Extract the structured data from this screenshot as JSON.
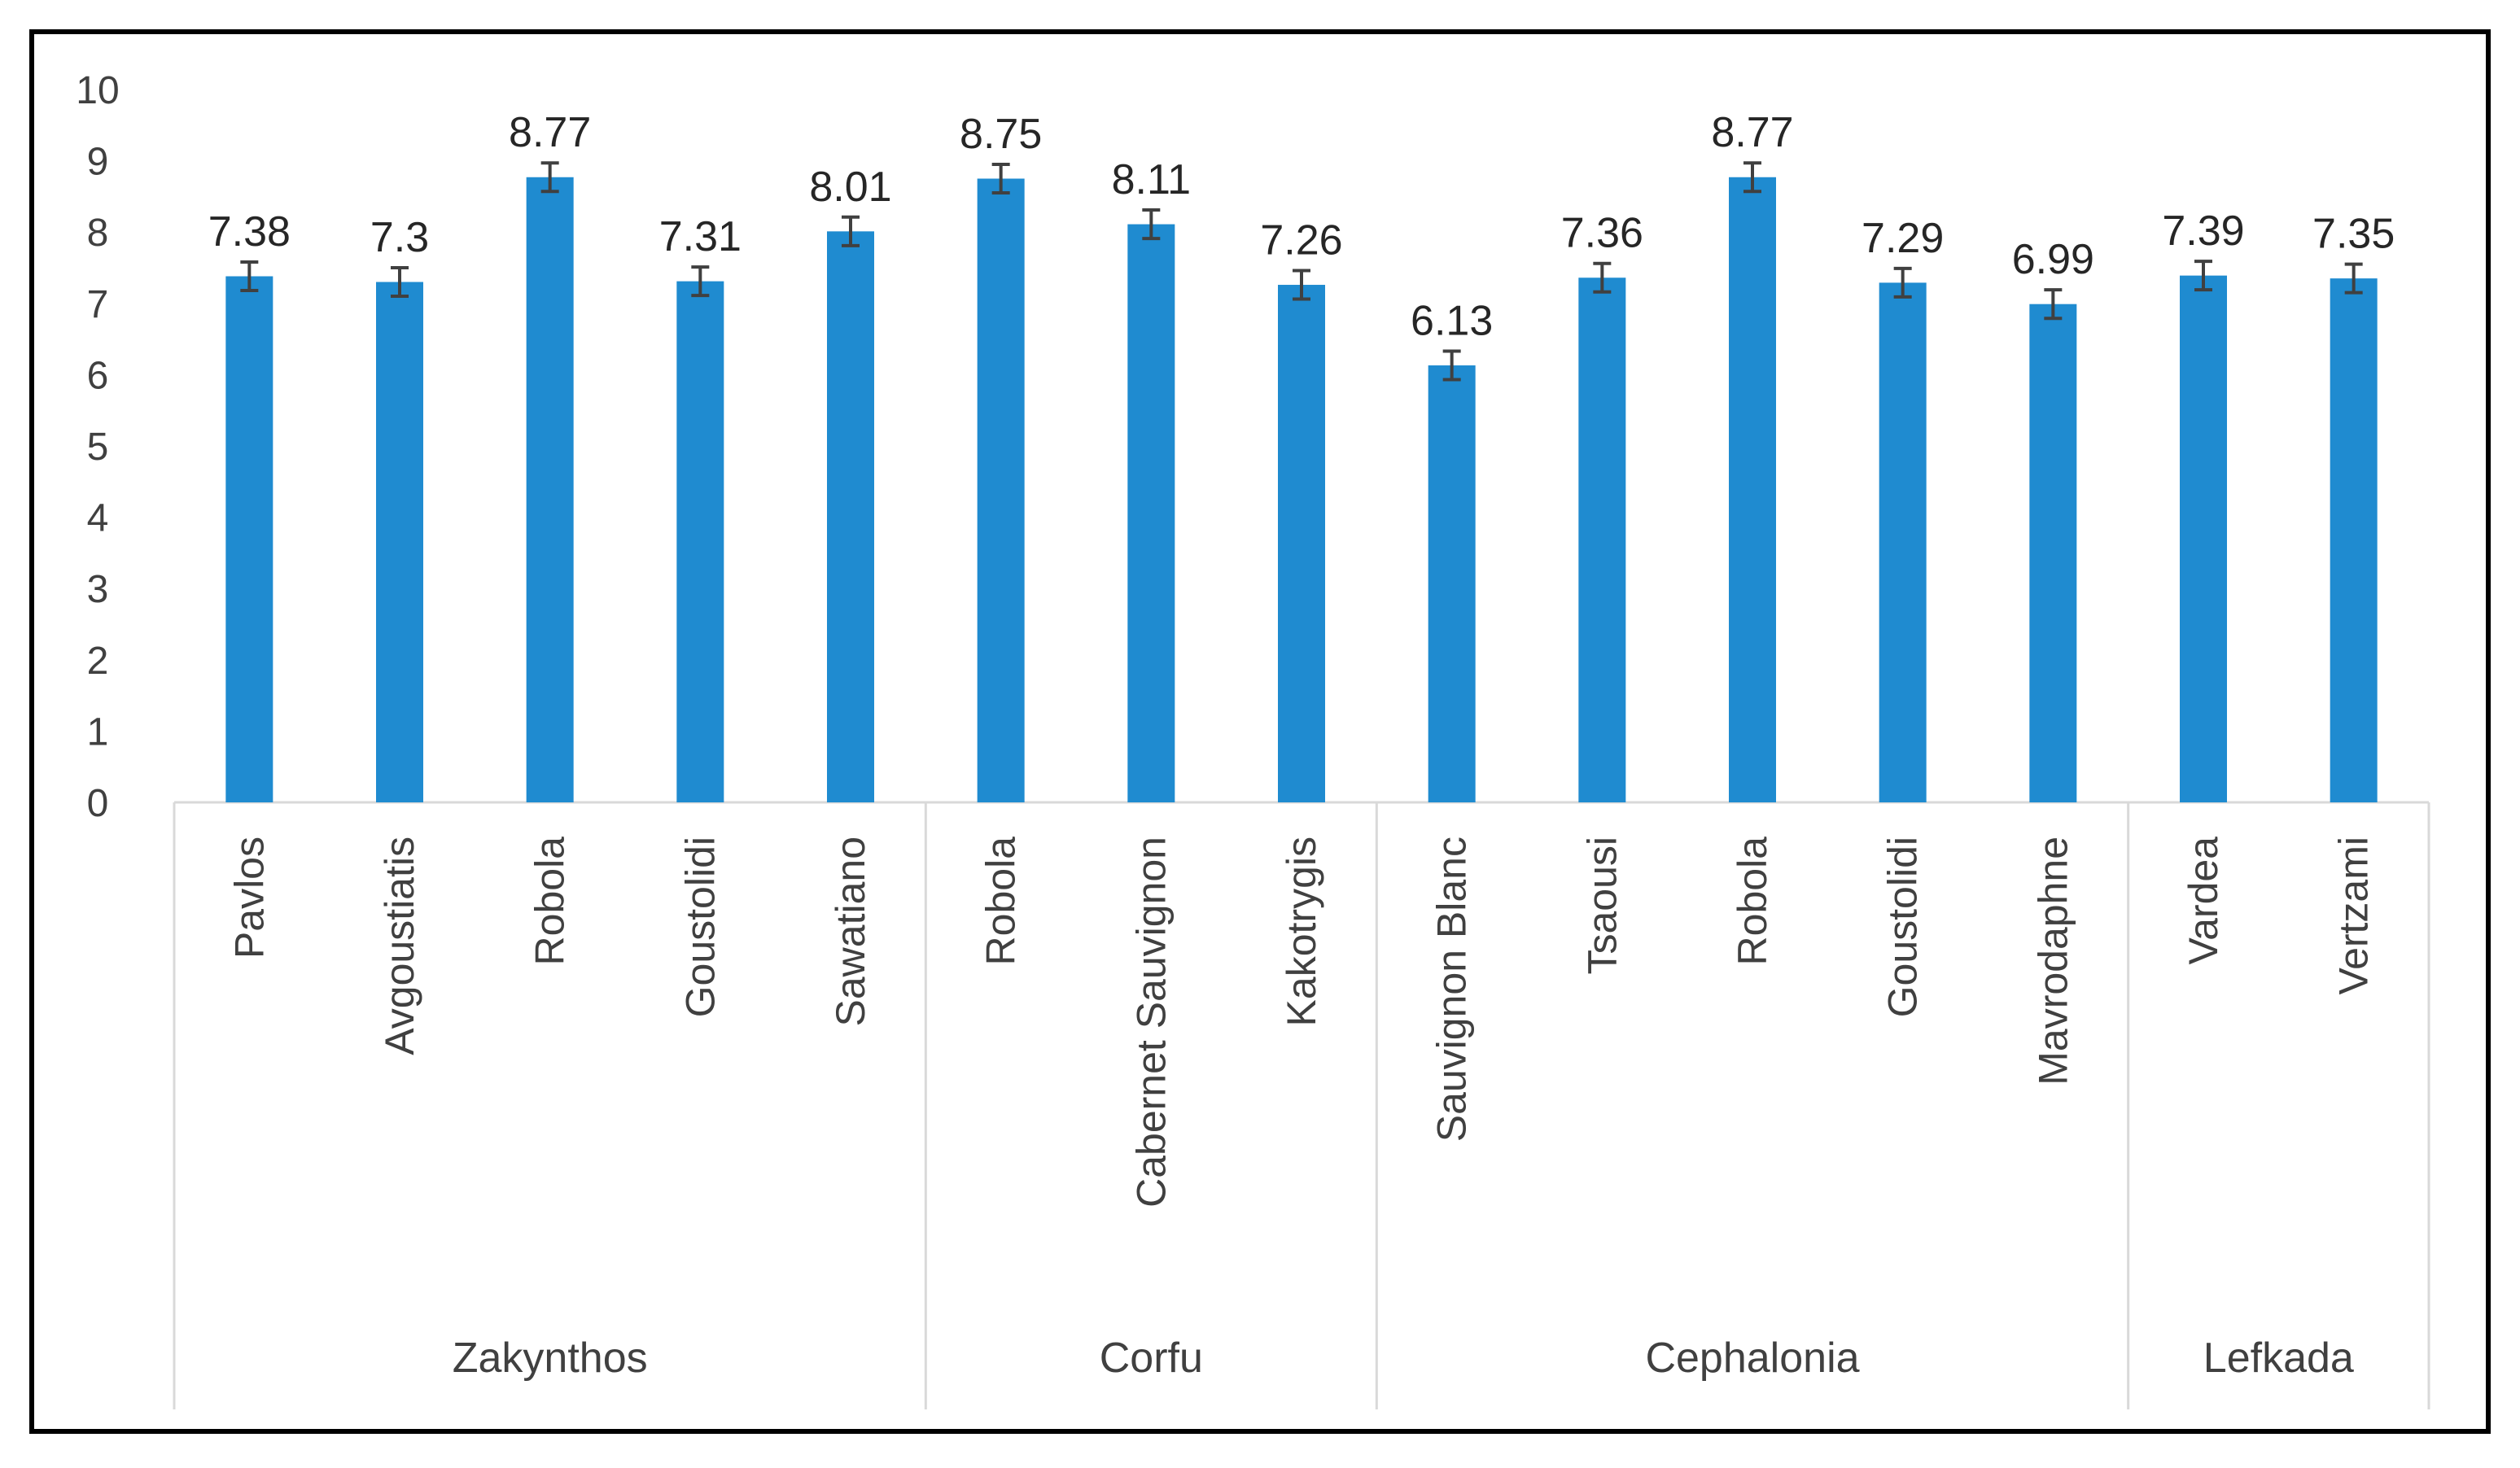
{
  "chart_data": {
    "type": "bar",
    "title": "",
    "xlabel": "",
    "ylabel": "",
    "ylim": [
      0,
      10
    ],
    "yticks": [
      0,
      1,
      2,
      3,
      4,
      5,
      6,
      7,
      8,
      9,
      10
    ],
    "bar_color": "#1f8bd0",
    "groups": [
      {
        "name": "Zakynthos",
        "categories": [
          "Pavlos",
          "Avgoustiatis",
          "Robola",
          "Goustolidi",
          "Sawatiano"
        ]
      },
      {
        "name": "Corfu",
        "categories": [
          "Robola",
          "Cabernet Sauvignon",
          "Kakotrygis"
        ]
      },
      {
        "name": "Cephalonia",
        "categories": [
          "Sauvignon Blanc",
          "Tsaousi",
          "Robola",
          "Goustolidi",
          "Mavrodaphne"
        ]
      },
      {
        "name": "Lefkada",
        "categories": [
          "Vardea",
          "Vertzami"
        ]
      }
    ],
    "values": [
      7.38,
      7.3,
      8.77,
      7.31,
      8.01,
      8.75,
      8.11,
      7.26,
      6.13,
      7.36,
      8.77,
      7.29,
      6.99,
      7.39,
      7.35
    ],
    "value_labels": [
      "7.38",
      "7.3",
      "8.77",
      "7.31",
      "8.01",
      "8.75",
      "8.11",
      "7.26",
      "6.13",
      "7.36",
      "8.77",
      "7.29",
      "6.99",
      "7.39",
      "7.35"
    ],
    "error": [
      0.2,
      0.2,
      0.2,
      0.2,
      0.2,
      0.2,
      0.2,
      0.2,
      0.2,
      0.2,
      0.2,
      0.2,
      0.2,
      0.2,
      0.2
    ]
  }
}
